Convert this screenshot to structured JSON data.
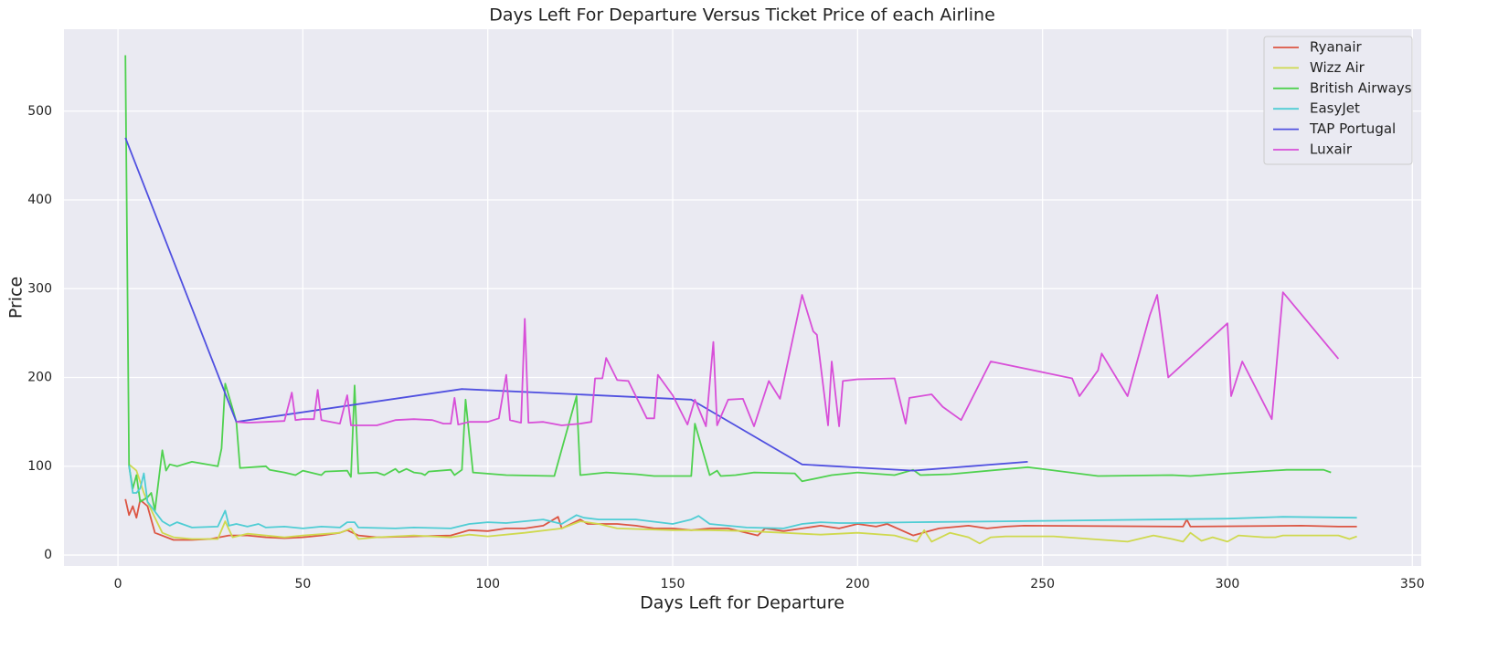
{
  "chart_data": {
    "type": "line",
    "title": "Days Left For Departure Versus Ticket Price of each Airline",
    "xlabel": "Days Left for Departure",
    "ylabel": "Price",
    "xlim": [
      -14.6,
      352.4
    ],
    "ylim": [
      -12.3,
      592.3
    ],
    "xticks": [
      0,
      50,
      100,
      150,
      200,
      250,
      300,
      350
    ],
    "yticks": [
      0,
      100,
      200,
      300,
      400,
      500
    ],
    "grid": true,
    "legend": "upper right",
    "series": [
      {
        "name": "Ryanair",
        "color": "#dc5543",
        "x": [
          2,
          3,
          4,
          5,
          6,
          8,
          10,
          15,
          20,
          25,
          30,
          35,
          40,
          45,
          50,
          55,
          60,
          62,
          65,
          70,
          80,
          90,
          95,
          100,
          105,
          110,
          115,
          119,
          120,
          125,
          127,
          130,
          135,
          140,
          145,
          150,
          155,
          160,
          165,
          170,
          173,
          175,
          180,
          185,
          190,
          195,
          200,
          205,
          208,
          215,
          222,
          230,
          235,
          240,
          245,
          288,
          289,
          290,
          320,
          330,
          335
        ],
        "values": [
          63,
          45,
          55,
          42,
          62,
          55,
          25,
          17,
          17,
          18,
          22,
          22,
          20,
          19,
          20,
          22,
          25,
          28,
          22,
          20,
          21,
          22,
          28,
          27,
          30,
          30,
          33,
          43,
          30,
          40,
          35,
          35,
          35,
          33,
          30,
          30,
          28,
          30,
          30,
          25,
          22,
          30,
          27,
          30,
          33,
          30,
          35,
          32,
          35,
          22,
          30,
          33,
          30,
          32,
          33,
          32,
          40,
          32,
          33,
          32,
          32
        ]
      },
      {
        "name": "Wizz Air",
        "color": "#cfd94e",
        "x": [
          3,
          5,
          7,
          8,
          10,
          12,
          15,
          20,
          27,
          29,
          31,
          35,
          40,
          45,
          50,
          60,
          63,
          65,
          70,
          80,
          90,
          95,
          100,
          110,
          120,
          125,
          130,
          135,
          150,
          160,
          170,
          180,
          190,
          200,
          210,
          216,
          218,
          220,
          225,
          230,
          233,
          236,
          240,
          253,
          273,
          280,
          285,
          288,
          290,
          293,
          296,
          300,
          303,
          310,
          313,
          315,
          330,
          333,
          335
        ],
        "values": [
          102,
          95,
          70,
          60,
          42,
          25,
          20,
          18,
          18,
          38,
          20,
          24,
          22,
          20,
          22,
          25,
          30,
          18,
          20,
          22,
          20,
          23,
          21,
          25,
          30,
          38,
          35,
          30,
          28,
          28,
          27,
          25,
          23,
          25,
          22,
          15,
          28,
          15,
          25,
          20,
          13,
          20,
          21,
          21,
          15,
          22,
          18,
          15,
          25,
          16,
          20,
          15,
          22,
          20,
          20,
          22,
          22,
          18,
          21
        ]
      },
      {
        "name": "British Airways",
        "color": "#4fd14f",
        "x": [
          2,
          3,
          4,
          5,
          6,
          8,
          9,
          10,
          12,
          13,
          14,
          16,
          20,
          27,
          28,
          29,
          31,
          32,
          33,
          40,
          41,
          45,
          48,
          50,
          55,
          56,
          62,
          63,
          64,
          65,
          70,
          72,
          75,
          76,
          78,
          80,
          82,
          83,
          84,
          90,
          91,
          93,
          94,
          96,
          105,
          118,
          124,
          125,
          132,
          140,
          145,
          155,
          156,
          160,
          162,
          163,
          167,
          172,
          183,
          185,
          193,
          200,
          210,
          215,
          217,
          225,
          246,
          265,
          285,
          290,
          300,
          316,
          326,
          328
        ],
        "values": [
          563,
          100,
          75,
          90,
          60,
          65,
          70,
          50,
          118,
          95,
          102,
          100,
          105,
          100,
          120,
          193,
          165,
          150,
          98,
          100,
          96,
          93,
          90,
          95,
          90,
          94,
          95,
          88,
          191,
          92,
          93,
          90,
          97,
          93,
          97,
          93,
          92,
          90,
          94,
          96,
          90,
          96,
          175,
          93,
          90,
          89,
          179,
          90,
          93,
          91,
          89,
          89,
          148,
          90,
          95,
          89,
          90,
          93,
          92,
          83,
          90,
          93,
          90,
          96,
          90,
          91,
          99,
          89,
          90,
          89,
          92,
          96,
          96,
          93
        ]
      },
      {
        "name": "EasyJet",
        "color": "#4fcdd4",
        "x": [
          3,
          4,
          5,
          6,
          7,
          8,
          12,
          14,
          16,
          20,
          27,
          29,
          30,
          32,
          35,
          38,
          40,
          45,
          50,
          55,
          60,
          62,
          64,
          65,
          75,
          80,
          90,
          95,
          100,
          105,
          115,
          120,
          124,
          126,
          130,
          140,
          150,
          155,
          157,
          160,
          170,
          180,
          185,
          190,
          195,
          200,
          215,
          240,
          300,
          315,
          335
        ],
        "values": [
          101,
          70,
          70,
          75,
          92,
          60,
          38,
          33,
          37,
          31,
          32,
          50,
          33,
          35,
          32,
          35,
          31,
          32,
          30,
          32,
          31,
          37,
          37,
          31,
          30,
          31,
          30,
          35,
          37,
          36,
          40,
          35,
          45,
          42,
          40,
          40,
          35,
          40,
          44,
          35,
          31,
          30,
          35,
          37,
          36,
          36,
          37,
          38,
          41,
          43,
          42
        ]
      },
      {
        "name": "TAP Portugal",
        "color": "#5050e0",
        "x": [
          2,
          32,
          93,
          155,
          185,
          215,
          246
        ],
        "values": [
          470,
          150,
          187,
          175,
          102,
          95,
          105
        ]
      },
      {
        "name": "Luxair",
        "color": "#d84fd8",
        "x": [
          32,
          35,
          40,
          45,
          47,
          48,
          50,
          53,
          54,
          55,
          60,
          62,
          63,
          70,
          75,
          80,
          85,
          88,
          90,
          91,
          92,
          95,
          100,
          103,
          105,
          106,
          109,
          110,
          111,
          115,
          120,
          125,
          128,
          129,
          131,
          132,
          135,
          138,
          143,
          145,
          146,
          150,
          154,
          156,
          159,
          161,
          162,
          165,
          169,
          172,
          176,
          179,
          185,
          188,
          189,
          192,
          193,
          195,
          196,
          200,
          210,
          213,
          214,
          220,
          223,
          228,
          236,
          258,
          260,
          265,
          266,
          273,
          279,
          281,
          284,
          300,
          301,
          304,
          312,
          315,
          330
        ],
        "values": [
          150,
          149,
          150,
          151,
          183,
          152,
          153,
          153,
          186,
          152,
          148,
          180,
          146,
          146,
          152,
          153,
          152,
          148,
          148,
          177,
          147,
          150,
          150,
          154,
          203,
          152,
          149,
          266,
          149,
          150,
          146,
          148,
          150,
          199,
          199,
          222,
          197,
          196,
          154,
          154,
          203,
          180,
          147,
          175,
          145,
          240,
          146,
          175,
          176,
          145,
          196,
          176,
          293,
          252,
          248,
          146,
          218,
          145,
          196,
          198,
          199,
          148,
          177,
          181,
          167,
          152,
          218,
          199,
          179,
          208,
          227,
          179,
          270,
          293,
          200,
          261,
          179,
          218,
          153,
          296,
          221
        ]
      }
    ]
  }
}
